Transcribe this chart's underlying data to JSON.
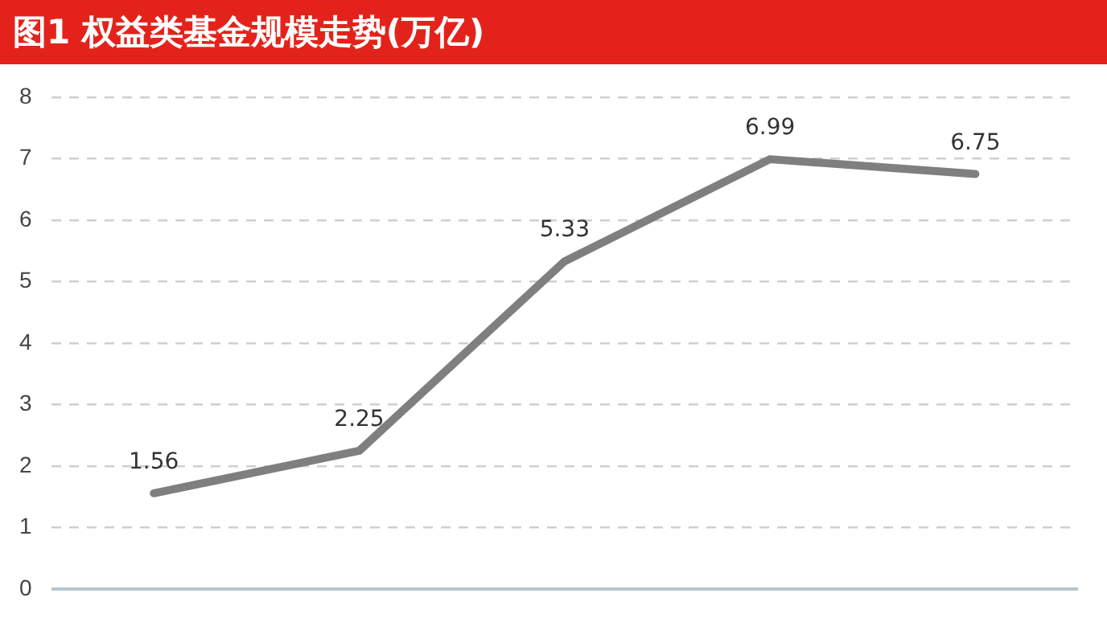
{
  "chart_data": {
    "type": "line",
    "title": "图1 权益类基金规模走势(万亿)",
    "categories": [
      null,
      null,
      null,
      null,
      null
    ],
    "series": [
      {
        "color": "#7f7f7f",
        "values": [
          1.56,
          2.25,
          5.33,
          6.99,
          6.75
        ]
      }
    ],
    "ylim": [
      0,
      8
    ],
    "yticks": [
      0,
      1,
      2,
      3,
      4,
      5,
      6,
      7,
      8
    ],
    "grid": "y",
    "legend": false,
    "marker": "none",
    "line_style": "solid",
    "data_labels": true
  }
}
